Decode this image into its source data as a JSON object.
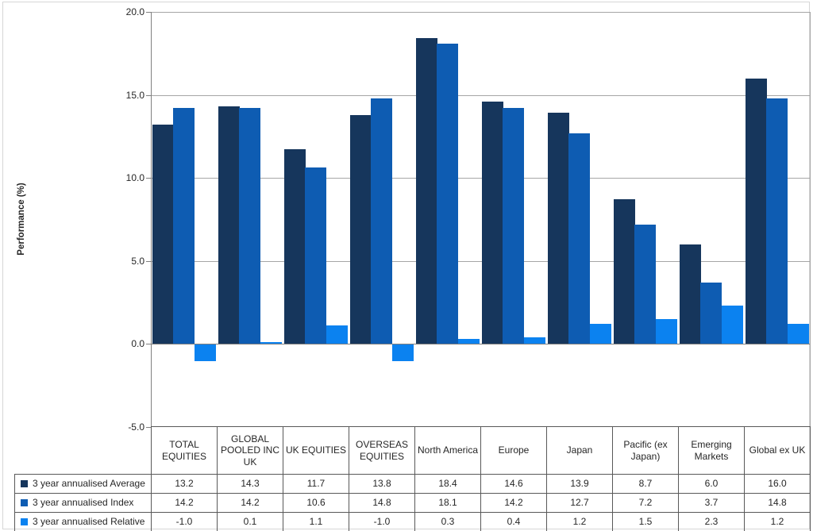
{
  "chart_data": {
    "type": "bar",
    "title": "",
    "xlabel": "",
    "ylabel": "Performance (%)",
    "ylim": [
      -5.0,
      20.0
    ],
    "yticks": [
      20.0,
      15.0,
      10.0,
      5.0,
      0.0,
      -5.0
    ],
    "ytick_labels": [
      "20.0",
      "15.0",
      "10.0",
      "5.0",
      "0.0",
      "-5.0"
    ],
    "grid": true,
    "legend_position": "left-of-table-rows",
    "categories": [
      "TOTAL EQUITIES",
      "GLOBAL POOLED INC UK",
      "UK EQUITIES",
      "OVERSEAS EQUITIES",
      "North America",
      "Europe",
      "Japan",
      "Pacific (ex Japan)",
      "Emerging Markets",
      "Global ex UK"
    ],
    "series": [
      {
        "name": "3 year annualised Average",
        "color": "#16365C",
        "values": [
          13.2,
          14.3,
          11.7,
          13.8,
          18.4,
          14.6,
          13.9,
          8.7,
          6.0,
          16.0
        ]
      },
      {
        "name": "3 year annualised Index",
        "color": "#0E5CB2",
        "values": [
          14.2,
          14.2,
          10.6,
          14.8,
          18.1,
          14.2,
          12.7,
          7.2,
          3.7,
          14.8
        ]
      },
      {
        "name": "3 year annualised Relative",
        "color": "#0B82F0",
        "values": [
          -1.0,
          0.1,
          1.1,
          -1.0,
          0.3,
          0.4,
          1.2,
          1.5,
          2.3,
          1.2
        ]
      }
    ],
    "value_format_decimals": 1
  },
  "colors": {
    "gridline": "#a6a6a6",
    "axis": "#808080",
    "table_border": "#595959",
    "outer_border": "#d6d6d6",
    "background": "#ffffff"
  }
}
